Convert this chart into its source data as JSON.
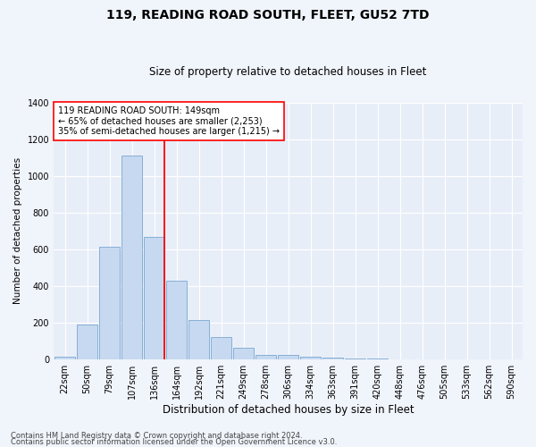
{
  "title1": "119, READING ROAD SOUTH, FLEET, GU52 7TD",
  "title2": "Size of property relative to detached houses in Fleet",
  "xlabel": "Distribution of detached houses by size in Fleet",
  "ylabel": "Number of detached properties",
  "annotation_line1": "119 READING ROAD SOUTH: 149sqm",
  "annotation_line2": "← 65% of detached houses are smaller (2,253)",
  "annotation_line3": "35% of semi-detached houses are larger (1,215) →",
  "footer1": "Contains HM Land Registry data © Crown copyright and database right 2024.",
  "footer2": "Contains public sector information licensed under the Open Government Licence v3.0.",
  "bin_labels": [
    "22sqm",
    "50sqm",
    "79sqm",
    "107sqm",
    "136sqm",
    "164sqm",
    "192sqm",
    "221sqm",
    "249sqm",
    "278sqm",
    "306sqm",
    "334sqm",
    "363sqm",
    "391sqm",
    "420sqm",
    "448sqm",
    "476sqm",
    "505sqm",
    "533sqm",
    "562sqm",
    "590sqm"
  ],
  "bar_values": [
    15,
    190,
    615,
    1110,
    670,
    430,
    215,
    125,
    65,
    25,
    25,
    18,
    12,
    8,
    4,
    3,
    2,
    1,
    1,
    0,
    0
  ],
  "bar_color": "#c6d9f0",
  "bar_edgecolor": "#7ba7d0",
  "red_line_index": 4.45,
  "ylim": [
    0,
    1400
  ],
  "yticks": [
    0,
    200,
    400,
    600,
    800,
    1000,
    1200,
    1400
  ],
  "bg_color": "#f0f4fb",
  "plot_bg_color": "#e8eef8",
  "title1_fontsize": 10,
  "title2_fontsize": 8.5,
  "xlabel_fontsize": 8.5,
  "ylabel_fontsize": 7.5,
  "tick_fontsize": 7,
  "footer_fontsize": 6
}
